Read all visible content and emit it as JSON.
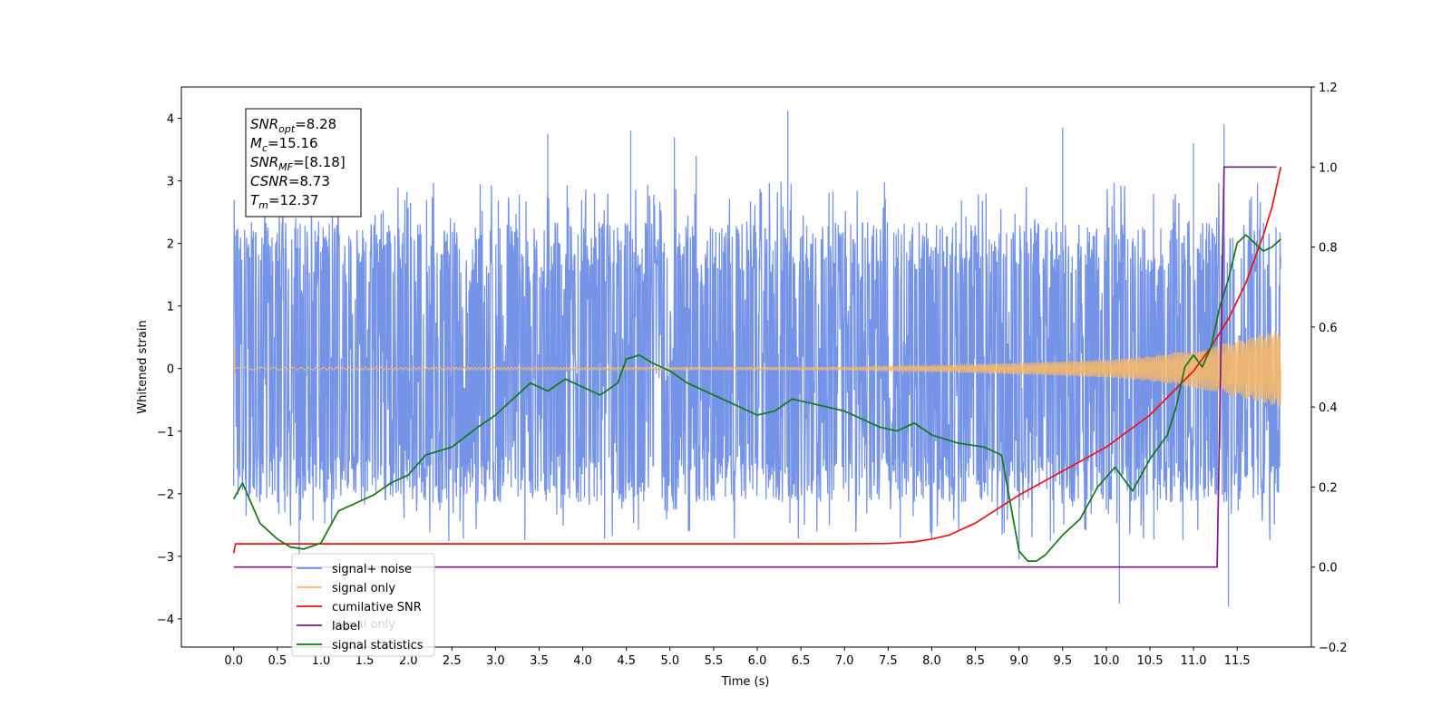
{
  "chart_data": {
    "type": "line",
    "xlabel": "Time (s)",
    "ylabel": "Whitened strain",
    "xlim": [
      -0.6,
      12.35
    ],
    "ylim": [
      -4.45,
      4.5
    ],
    "y2lim": [
      -0.2,
      1.2
    ],
    "x_ticks": [
      "0.0",
      "0.5",
      "1.0",
      "1.5",
      "2.0",
      "2.5",
      "3.0",
      "3.5",
      "4.0",
      "4.5",
      "5.0",
      "5.5",
      "6.0",
      "6.5",
      "7.0",
      "7.5",
      "8.0",
      "8.5",
      "9.0",
      "9.5",
      "10.0",
      "10.5",
      "11.0",
      "11.5"
    ],
    "y_ticks": [
      "−4",
      "−3",
      "−2",
      "−1",
      "0",
      "1",
      "2",
      "3",
      "4"
    ],
    "y2_ticks": [
      "−0.2",
      "0.0",
      "0.2",
      "0.4",
      "0.6",
      "0.8",
      "1.0",
      "1.2"
    ],
    "grid": false,
    "legend_position": "lower-left",
    "legend": [
      "signal+ noise",
      "signal only",
      "cumilative SNR",
      "label",
      "signal statistics"
    ],
    "legend_hidden_text": "signal only",
    "annotation": {
      "lines": [
        {
          "main": "SNR",
          "sub": "opt",
          "rest": "=8.28"
        },
        {
          "main": "M",
          "sub": "c",
          "rest": "=15.16"
        },
        {
          "main": "SNR",
          "sub": "MF",
          "rest": "=[8.18]"
        },
        {
          "main": "CSNR",
          "sub": "",
          "rest": "=8.73"
        },
        {
          "main": "T",
          "sub": "m",
          "rest": "=12.37"
        }
      ]
    },
    "series": [
      {
        "name": "signal+ noise",
        "axis": "left",
        "color": "#6f8ee6",
        "x_start": 0.0,
        "x_end": 12.0,
        "noise_band": [
          -1.65,
          1.8
        ],
        "envelope": [
          -2.4,
          2.6
        ],
        "extreme_peaks": [
          [
            0.75,
            -3.0
          ],
          [
            3.6,
            3.75
          ],
          [
            4.55,
            3.8
          ],
          [
            5.05,
            3.7
          ],
          [
            5.3,
            3.4
          ],
          [
            6.35,
            4.12
          ],
          [
            9.0,
            -3.05
          ],
          [
            9.5,
            3.85
          ],
          [
            10.15,
            -3.75
          ],
          [
            11.0,
            3.6
          ],
          [
            11.35,
            3.9
          ],
          [
            11.4,
            -3.8
          ]
        ]
      },
      {
        "name": "signal only",
        "axis": "left",
        "color": "#f5b86a",
        "x_start": 0.0,
        "x_end": 12.0,
        "amplitude_envelope": [
          [
            0.0,
            0.02
          ],
          [
            7.0,
            0.02
          ],
          [
            8.0,
            0.05
          ],
          [
            9.0,
            0.09
          ],
          [
            10.0,
            0.14
          ],
          [
            10.5,
            0.2
          ],
          [
            11.0,
            0.3
          ],
          [
            11.5,
            0.45
          ],
          [
            12.0,
            0.62
          ]
        ],
        "cycles": 420
      },
      {
        "name": "cumilative SNR",
        "axis": "right",
        "color": "#ee1111",
        "x": [
          0.0,
          0.02,
          1.0,
          2.0,
          3.0,
          4.0,
          5.0,
          6.0,
          7.0,
          7.5,
          7.8,
          8.0,
          8.2,
          8.5,
          9.0,
          9.5,
          10.0,
          10.5,
          11.0,
          11.2,
          11.4,
          11.6,
          11.8,
          11.9,
          12.0
        ],
        "y": [
          0.035,
          0.058,
          0.058,
          0.058,
          0.058,
          0.058,
          0.058,
          0.058,
          0.058,
          0.059,
          0.063,
          0.07,
          0.08,
          0.11,
          0.18,
          0.24,
          0.3,
          0.38,
          0.49,
          0.55,
          0.62,
          0.71,
          0.83,
          0.9,
          1.0
        ]
      },
      {
        "name": "label",
        "axis": "right",
        "color": "#7b1c86",
        "x": [
          0.0,
          11.27,
          11.35,
          11.95
        ],
        "y": [
          0.0,
          0.0,
          1.0,
          1.0
        ]
      },
      {
        "name": "signal statistics",
        "axis": "right",
        "color": "#127812",
        "x": [
          0.0,
          0.05,
          0.1,
          0.2,
          0.3,
          0.5,
          0.65,
          0.8,
          1.0,
          1.2,
          1.4,
          1.6,
          1.8,
          2.0,
          2.2,
          2.5,
          2.8,
          3.0,
          3.2,
          3.4,
          3.6,
          3.8,
          4.0,
          4.2,
          4.4,
          4.5,
          4.65,
          4.8,
          5.0,
          5.2,
          5.5,
          5.8,
          6.0,
          6.2,
          6.4,
          6.6,
          6.8,
          7.0,
          7.2,
          7.4,
          7.6,
          7.8,
          8.0,
          8.3,
          8.6,
          8.8,
          9.0,
          9.1,
          9.2,
          9.3,
          9.5,
          9.7,
          9.9,
          10.1,
          10.3,
          10.5,
          10.7,
          10.8,
          10.9,
          11.0,
          11.1,
          11.2,
          11.3,
          11.4,
          11.5,
          11.6,
          11.7,
          11.8,
          11.9,
          12.0
        ],
        "y": [
          0.17,
          0.19,
          0.21,
          0.16,
          0.11,
          0.07,
          0.05,
          0.045,
          0.06,
          0.14,
          0.16,
          0.18,
          0.21,
          0.23,
          0.28,
          0.3,
          0.35,
          0.38,
          0.42,
          0.46,
          0.44,
          0.47,
          0.45,
          0.43,
          0.46,
          0.52,
          0.53,
          0.51,
          0.49,
          0.46,
          0.43,
          0.4,
          0.38,
          0.39,
          0.42,
          0.41,
          0.4,
          0.39,
          0.37,
          0.35,
          0.34,
          0.36,
          0.33,
          0.31,
          0.3,
          0.28,
          0.04,
          0.015,
          0.015,
          0.03,
          0.08,
          0.12,
          0.2,
          0.25,
          0.19,
          0.27,
          0.33,
          0.4,
          0.5,
          0.53,
          0.5,
          0.55,
          0.65,
          0.72,
          0.81,
          0.83,
          0.81,
          0.79,
          0.8,
          0.82
        ]
      }
    ]
  }
}
